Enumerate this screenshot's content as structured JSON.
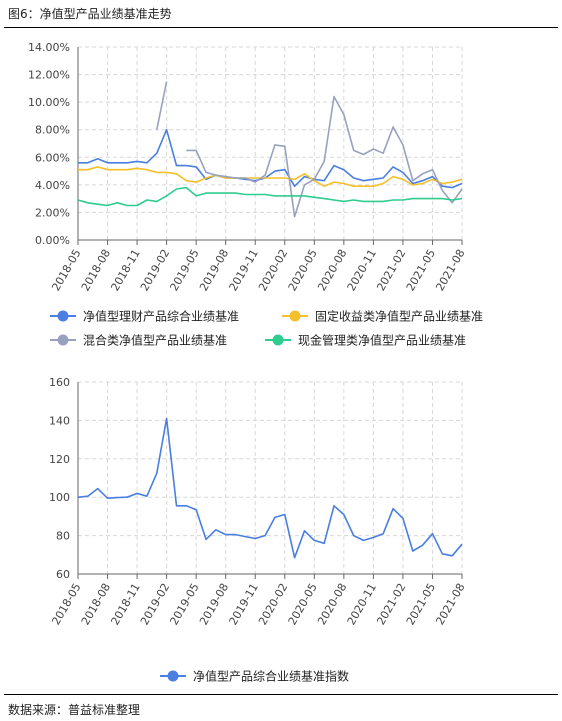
{
  "figure_title": "图6：净值型产品业绩基准走势",
  "source": "数据来源：普益标准整理",
  "colors": {
    "净值型理财产品综合业绩基准": "#4a7ee0",
    "固定收益类净值型产品业绩基准": "#f5bf2a",
    "混合类净值型产品业绩基准": "#98a2bf",
    "现金管理类净值型产品业绩基准": "#2fcc8f",
    "index": "#4a7ee0"
  },
  "chart_data": [
    {
      "type": "line",
      "x": [
        "2018-05",
        "2018-06",
        "2018-07",
        "2018-08",
        "2018-09",
        "2018-10",
        "2018-11",
        "2018-12",
        "2019-01",
        "2019-02",
        "2019-03",
        "2019-04",
        "2019-05",
        "2019-06",
        "2019-07",
        "2019-08",
        "2019-09",
        "2019-10",
        "2019-11",
        "2019-12",
        "2020-01",
        "2020-02",
        "2020-03",
        "2020-04",
        "2020-05",
        "2020-06",
        "2020-07",
        "2020-08",
        "2020-09",
        "2020-10",
        "2020-11",
        "2020-12",
        "2021-01",
        "2021-02",
        "2021-03",
        "2021-04",
        "2021-05",
        "2021-06",
        "2021-07",
        "2021-08"
      ],
      "xticks": [
        "2018-05",
        "2018-08",
        "2018-11",
        "2019-02",
        "2019-05",
        "2019-08",
        "2019-11",
        "2020-02",
        "2020-05",
        "2020-08",
        "2020-11",
        "2021-02",
        "2021-05",
        "2021-08"
      ],
      "ylim": [
        0,
        14
      ],
      "yticks": [
        "0.00%",
        "2.00%",
        "4.00%",
        "6.00%",
        "8.00%",
        "10.00%",
        "12.00%",
        "14.00%"
      ],
      "grid": true,
      "legend_position": "bottom",
      "series": [
        {
          "name": "净值型理财产品综合业绩基准",
          "values": [
            5.6,
            5.6,
            5.9,
            5.6,
            5.6,
            5.6,
            5.7,
            5.6,
            6.3,
            8.0,
            5.4,
            5.4,
            5.3,
            4.4,
            4.7,
            4.5,
            4.5,
            4.4,
            4.3,
            4.5,
            5.0,
            5.1,
            3.9,
            4.6,
            4.4,
            4.3,
            5.4,
            5.1,
            4.5,
            4.3,
            4.4,
            4.5,
            5.3,
            4.9,
            4.1,
            4.3,
            4.6,
            3.9,
            3.8,
            4.1
          ]
        },
        {
          "name": "固定收益类净值型产品业绩基准",
          "values": [
            5.1,
            5.1,
            5.3,
            5.1,
            5.1,
            5.1,
            5.2,
            5.1,
            4.9,
            4.9,
            4.8,
            4.3,
            4.2,
            4.5,
            4.7,
            4.5,
            4.5,
            4.5,
            4.5,
            4.5,
            4.5,
            4.5,
            4.4,
            4.8,
            4.3,
            3.9,
            4.2,
            4.1,
            3.9,
            3.9,
            3.9,
            4.1,
            4.6,
            4.4,
            4.0,
            4.1,
            4.4,
            4.1,
            4.2,
            4.4
          ]
        },
        {
          "name": "混合类净值型产品业绩基准",
          "values": [
            null,
            null,
            null,
            null,
            null,
            null,
            null,
            null,
            8.0,
            11.5,
            null,
            6.5,
            6.5,
            4.9,
            4.7,
            4.6,
            4.5,
            4.5,
            4.2,
            4.7,
            6.9,
            6.8,
            1.7,
            4.0,
            4.4,
            5.7,
            10.4,
            9.1,
            6.5,
            6.2,
            6.6,
            6.3,
            8.2,
            6.9,
            4.3,
            4.8,
            5.1,
            3.6,
            2.7,
            3.7
          ]
        },
        {
          "name": "现金管理类净值型产品业绩基准",
          "values": [
            2.9,
            2.7,
            2.6,
            2.5,
            2.7,
            2.5,
            2.5,
            2.9,
            2.8,
            3.2,
            3.7,
            3.8,
            3.2,
            3.4,
            3.4,
            3.4,
            3.4,
            3.3,
            3.3,
            3.3,
            3.2,
            3.2,
            3.2,
            3.2,
            3.1,
            3.0,
            2.9,
            2.8,
            2.9,
            2.8,
            2.8,
            2.8,
            2.9,
            2.9,
            3.0,
            3.0,
            3.0,
            3.0,
            2.9,
            3.0
          ]
        }
      ]
    },
    {
      "type": "line",
      "x": [
        "2018-05",
        "2018-06",
        "2018-07",
        "2018-08",
        "2018-09",
        "2018-10",
        "2018-11",
        "2018-12",
        "2019-01",
        "2019-02",
        "2019-03",
        "2019-04",
        "2019-05",
        "2019-06",
        "2019-07",
        "2019-08",
        "2019-09",
        "2019-10",
        "2019-11",
        "2019-12",
        "2020-01",
        "2020-02",
        "2020-03",
        "2020-04",
        "2020-05",
        "2020-06",
        "2020-07",
        "2020-08",
        "2020-09",
        "2020-10",
        "2020-11",
        "2020-12",
        "2021-01",
        "2021-02",
        "2021-03",
        "2021-04",
        "2021-05",
        "2021-06",
        "2021-07",
        "2021-08"
      ],
      "xticks": [
        "2018-05",
        "2018-08",
        "2018-11",
        "2019-02",
        "2019-05",
        "2019-08",
        "2019-11",
        "2020-02",
        "2020-05",
        "2020-08",
        "2020-11",
        "2021-02",
        "2021-05",
        "2021-08"
      ],
      "ylim": [
        60,
        160
      ],
      "yticks": [
        "60",
        "80",
        "100",
        "120",
        "140",
        "160"
      ],
      "grid": true,
      "legend_position": "bottom",
      "series": [
        {
          "name": "净值型产品综合业绩基准指数",
          "values": [
            100,
            100.5,
            104.5,
            99.5,
            99.8,
            100,
            102,
            100.5,
            112.5,
            141,
            95.5,
            95.5,
            93.5,
            78,
            83,
            80.5,
            80.5,
            79.5,
            78.5,
            80,
            89.5,
            91,
            68.5,
            82.5,
            77.5,
            76,
            95.5,
            91,
            80,
            77.5,
            79,
            81,
            94,
            89,
            72,
            75,
            81,
            70.5,
            69.5,
            75.5
          ]
        }
      ]
    }
  ]
}
